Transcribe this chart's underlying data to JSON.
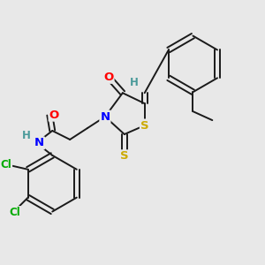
{
  "bg_color": "#e8e8e8",
  "bond_color": "#1a1a1a",
  "atom_colors": {
    "O": "#ff0000",
    "N": "#0000ff",
    "S": "#ccaa00",
    "Cl": "#00aa00",
    "H": "#4a9a9a",
    "C": "#1a1a1a"
  },
  "font_size": 8.5
}
